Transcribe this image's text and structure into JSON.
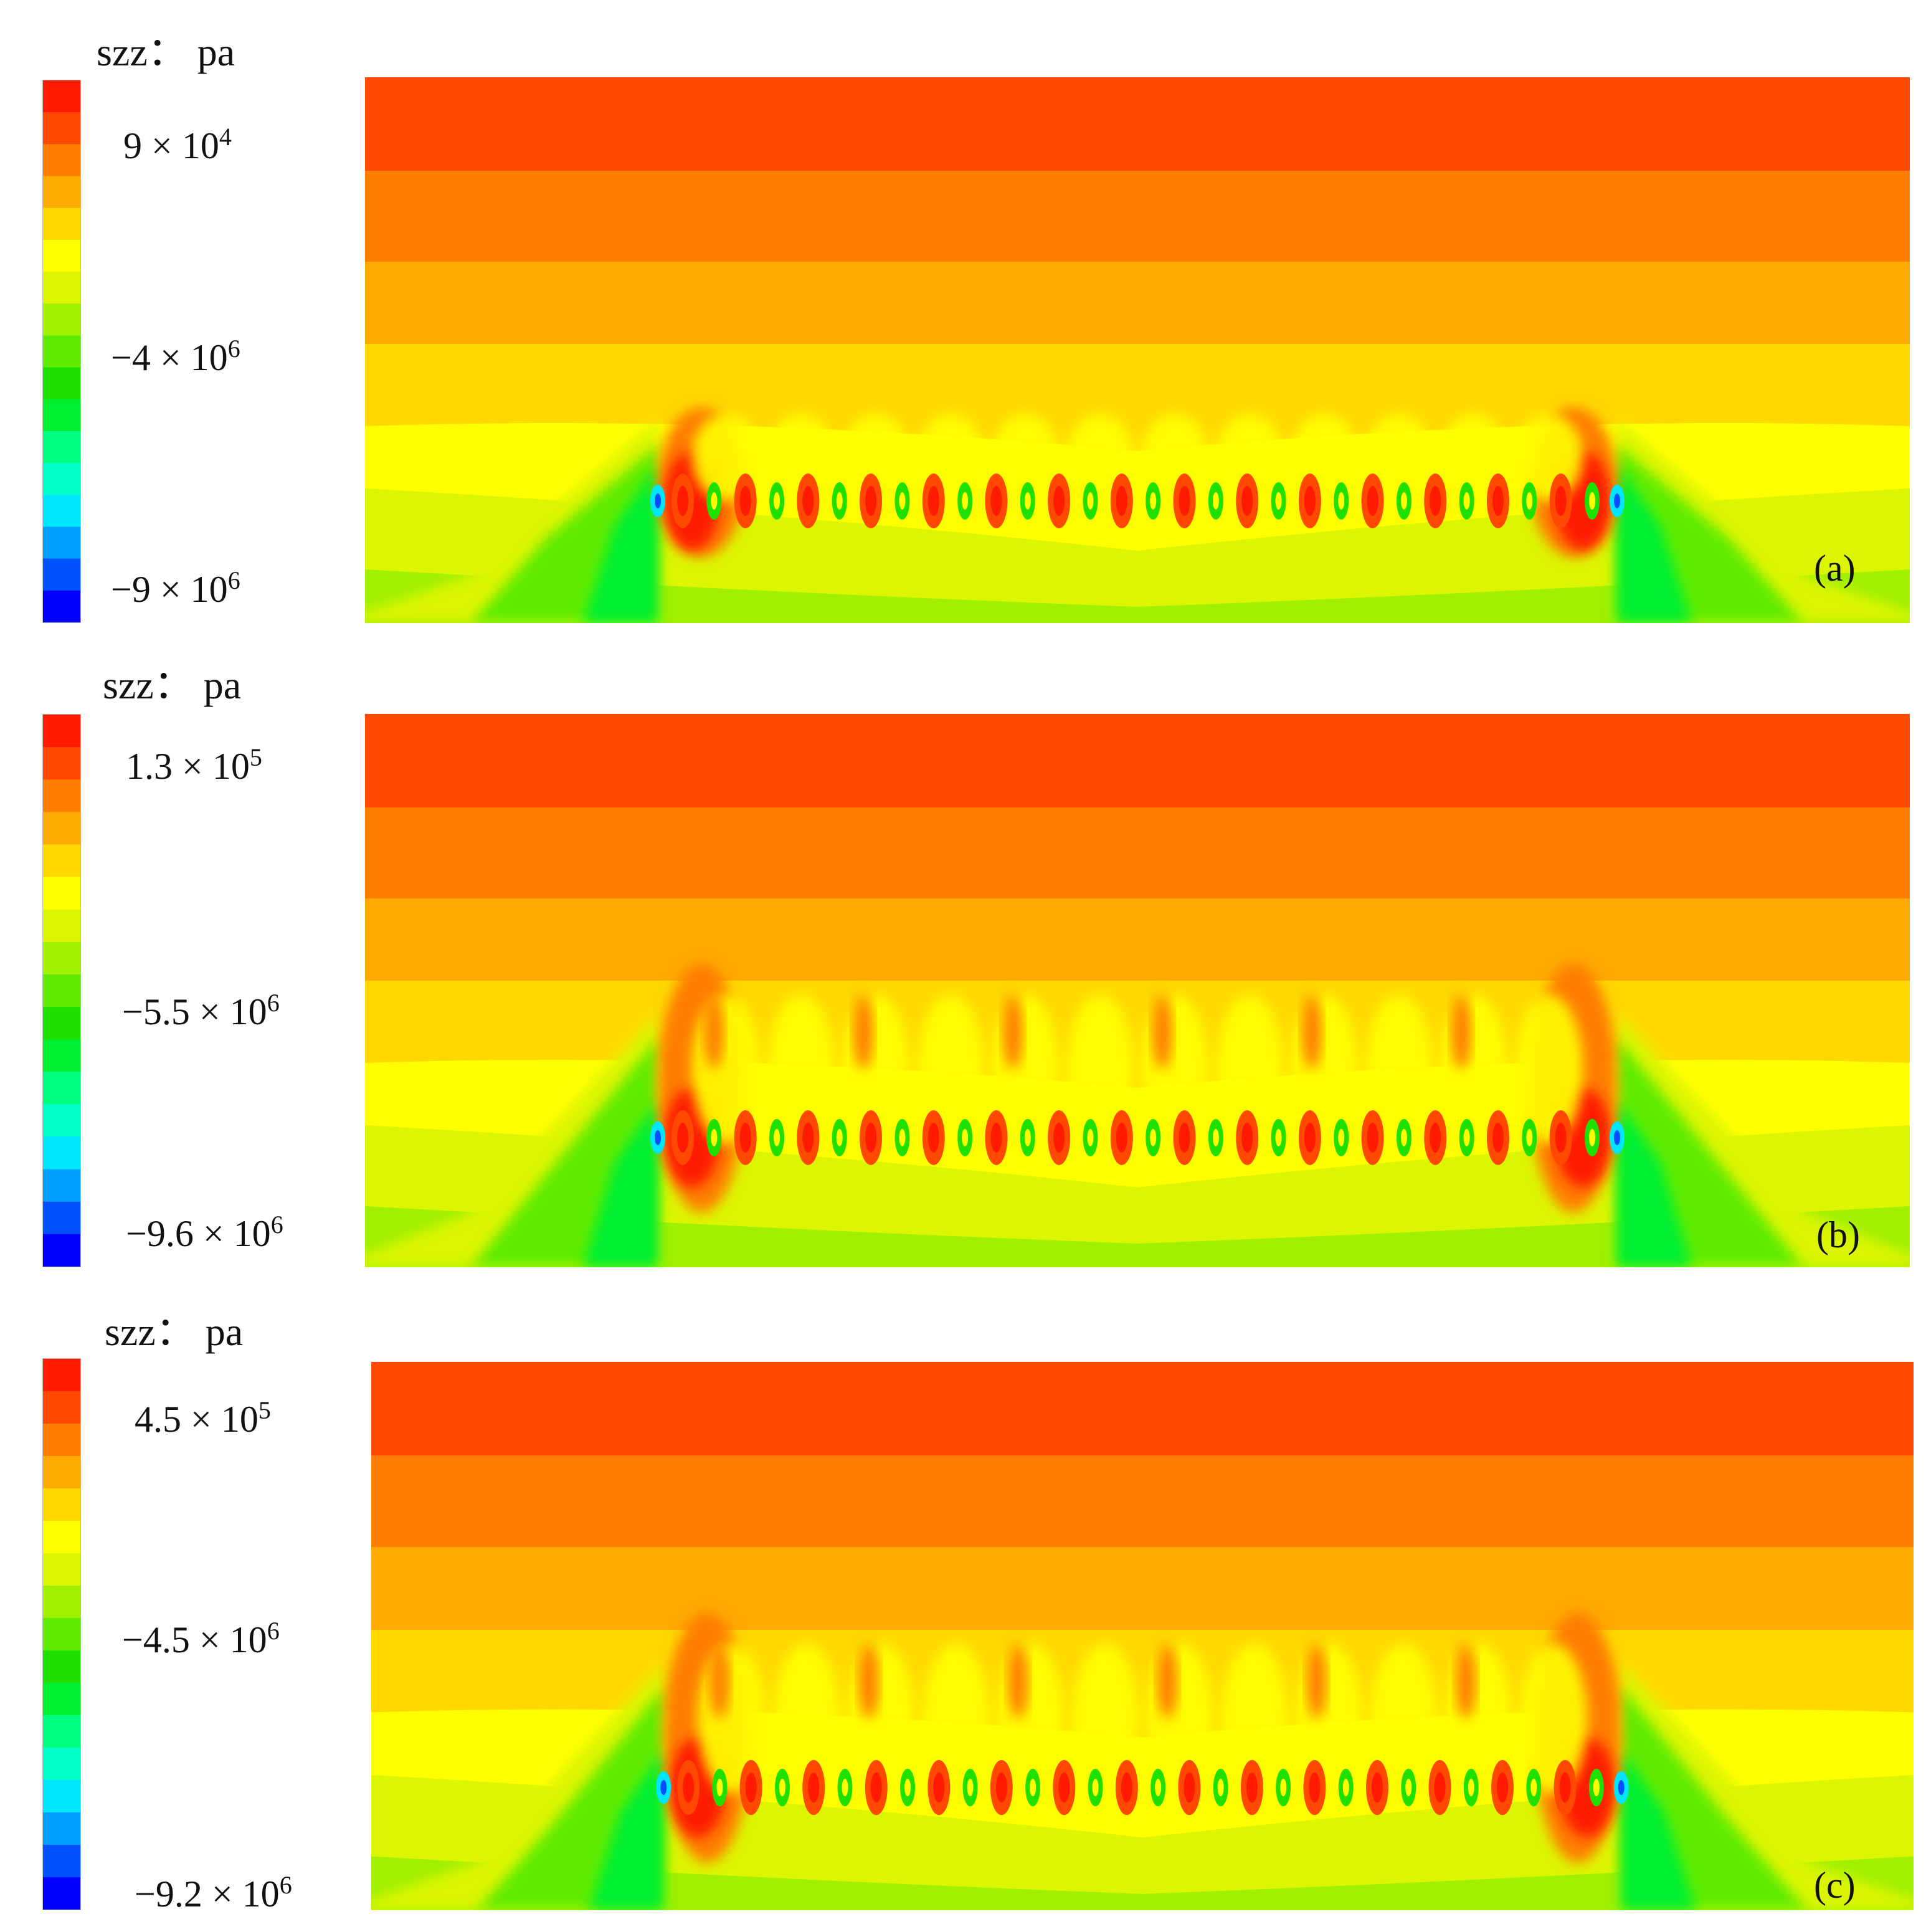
{
  "colormap": [
    "#0000ff",
    "#0050ff",
    "#00a0ff",
    "#00e6ff",
    "#00ffc8",
    "#00ff80",
    "#00f030",
    "#20e000",
    "#60ec00",
    "#a0f000",
    "#dcf500",
    "#ffff00",
    "#ffd800",
    "#ffaa00",
    "#ff7e00",
    "#ff4800",
    "#ff1a00"
  ],
  "panels": [
    {
      "title": "szz： pa",
      "label": "(a)",
      "ticks": [
        {
          "mant": "9 × 10",
          "exp": "4"
        },
        {
          "mant": "−4 × 10",
          "exp": "6"
        },
        {
          "mant": "−9 × 10",
          "exp": "6"
        }
      ]
    },
    {
      "title": "szz： pa",
      "label": "(b)",
      "ticks": [
        {
          "mant": "1.3 × 10",
          "exp": "5"
        },
        {
          "mant": "−5.5 × 10",
          "exp": "6"
        },
        {
          "mant": "−9.6 × 10",
          "exp": "6"
        }
      ]
    },
    {
      "title": "szz： pa",
      "label": "(c)",
      "ticks": [
        {
          "mant": "4.5 × 10",
          "exp": "5"
        },
        {
          "mant": "−4.5 × 10",
          "exp": "6"
        },
        {
          "mant": "−9.2 × 10",
          "exp": "6"
        }
      ]
    }
  ]
}
